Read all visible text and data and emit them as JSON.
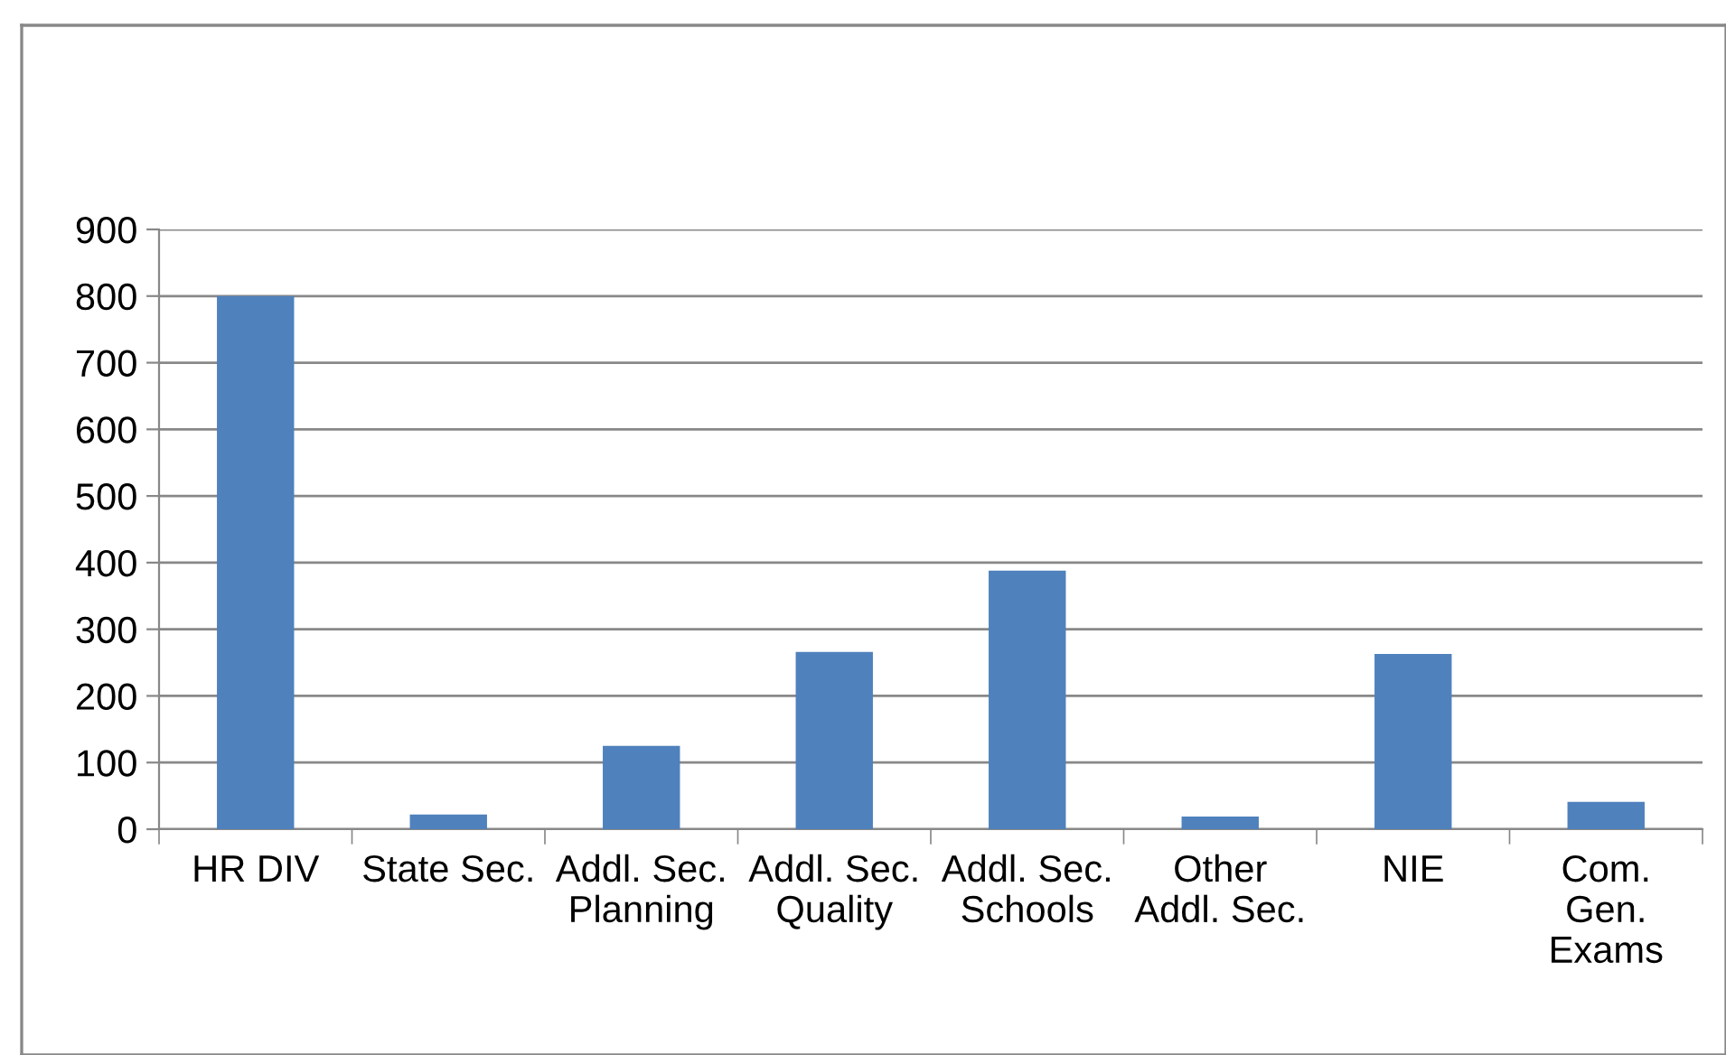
{
  "chart_data": {
    "type": "bar",
    "categories": [
      "HR DIV",
      "State Sec.",
      "Addl. Sec.\nPlanning",
      "Addl. Sec.\nQuality",
      "Addl. Sec.\nSchools",
      "Other\nAddl. Sec.",
      "NIE",
      "Com.\nGen.\nExams"
    ],
    "values": [
      800,
      22,
      125,
      266,
      388,
      19,
      263,
      41
    ],
    "color": "#4f81bd",
    "ylim": [
      0,
      900
    ],
    "yticks": [
      0,
      100,
      200,
      300,
      400,
      500,
      600,
      700,
      800,
      900
    ],
    "grid": "y",
    "legend": false
  }
}
